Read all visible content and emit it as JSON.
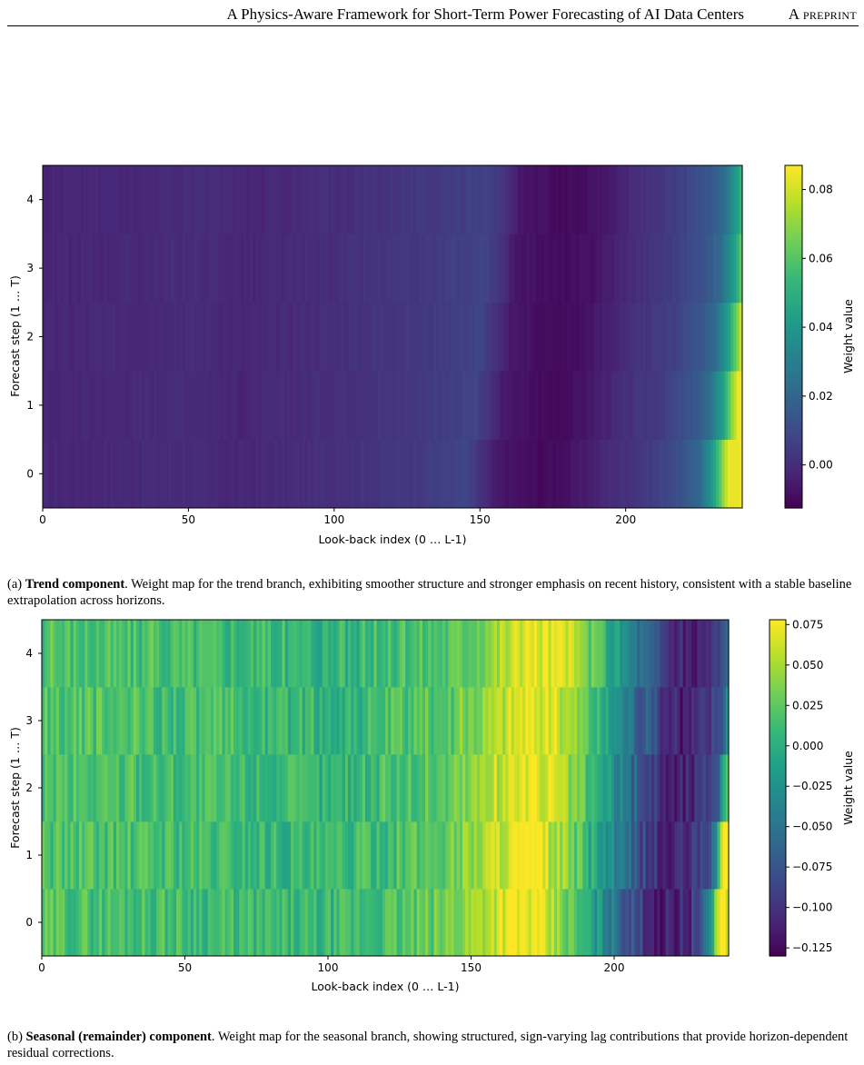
{
  "header": {
    "title": "A Physics-Aware Framework for Short-Term Power Forecasting of AI Data Centers",
    "tag": "A preprint"
  },
  "chart_data": [
    {
      "type": "heatmap",
      "panel": "(a)",
      "xlabel": "Look-back index (0 … L-1)",
      "ylabel": "Forecast step (1 … T)",
      "x_ticks": [
        "0",
        "50",
        "100",
        "150",
        "200"
      ],
      "y_ticks": [
        "0",
        "1",
        "2",
        "3",
        "4"
      ],
      "xlim": [
        0,
        240
      ],
      "rows": 5,
      "colorbar": {
        "label": "Weight value",
        "ticks": [
          "0.00",
          "0.02",
          "0.04",
          "0.06",
          "0.08"
        ],
        "tick_values": [
          0.0,
          0.02,
          0.04,
          0.06,
          0.08
        ],
        "range": [
          -0.0125,
          0.087
        ]
      },
      "colormap": "viridis",
      "knots": [
        [
          0,
          -0.002
        ],
        [
          30,
          -0.001
        ],
        [
          50,
          0.0
        ],
        [
          70,
          -0.002
        ],
        [
          100,
          0.001
        ],
        [
          130,
          0.004
        ],
        [
          150,
          0.008
        ],
        [
          160,
          -0.006
        ],
        [
          175,
          -0.01
        ],
        [
          185,
          -0.008
        ],
        [
          200,
          0.0
        ],
        [
          215,
          0.006
        ],
        [
          225,
          0.014
        ],
        [
          230,
          0.022
        ],
        [
          235,
          0.045
        ],
        [
          238,
          0.07
        ],
        [
          240,
          0.085
        ]
      ],
      "row_shifts": [
        5,
        2,
        0,
        -2,
        -3
      ]
    },
    {
      "type": "heatmap",
      "panel": "(b)",
      "xlabel": "Look-back index (0 … L-1)",
      "ylabel": "Forecast step (1 … T)",
      "x_ticks": [
        "0",
        "50",
        "100",
        "150",
        "200"
      ],
      "y_ticks": [
        "0",
        "1",
        "2",
        "3",
        "4"
      ],
      "xlim": [
        0,
        240
      ],
      "rows": 5,
      "colorbar": {
        "label": "Weight value",
        "ticks": [
          "−0.125",
          "−0.100",
          "−0.075",
          "−0.050",
          "−0.025",
          "0.000",
          "0.025",
          "0.050",
          "0.075"
        ],
        "tick_values": [
          -0.125,
          -0.1,
          -0.075,
          -0.05,
          -0.025,
          0.0,
          0.025,
          0.05,
          0.075
        ],
        "range": [
          -0.13,
          0.078
        ]
      },
      "colormap": "viridis",
      "knots": [
        [
          0,
          0.02
        ],
        [
          50,
          0.015
        ],
        [
          100,
          0.005
        ],
        [
          140,
          0.025
        ],
        [
          155,
          0.05
        ],
        [
          165,
          0.07
        ],
        [
          175,
          0.07
        ],
        [
          185,
          0.04
        ],
        [
          200,
          -0.03
        ],
        [
          210,
          -0.08
        ],
        [
          220,
          -0.115
        ],
        [
          230,
          -0.1
        ],
        [
          236,
          -0.06
        ],
        [
          240,
          0.075
        ]
      ],
      "row_shifts": [
        4,
        2,
        0,
        -2,
        -4
      ]
    }
  ],
  "captions": [
    {
      "label": "(a)",
      "bold": "Trend component",
      "text": ". Weight map for the trend branch, exhibiting smoother structure and stronger emphasis on recent history, consistent with a stable baseline extrapolation across horizons."
    },
    {
      "label": "(b)",
      "bold": "Seasonal (remainder) component",
      "text": ". Weight map for the seasonal branch, showing structured, sign-varying lag contributions that provide horizon-dependent residual corrections."
    }
  ]
}
